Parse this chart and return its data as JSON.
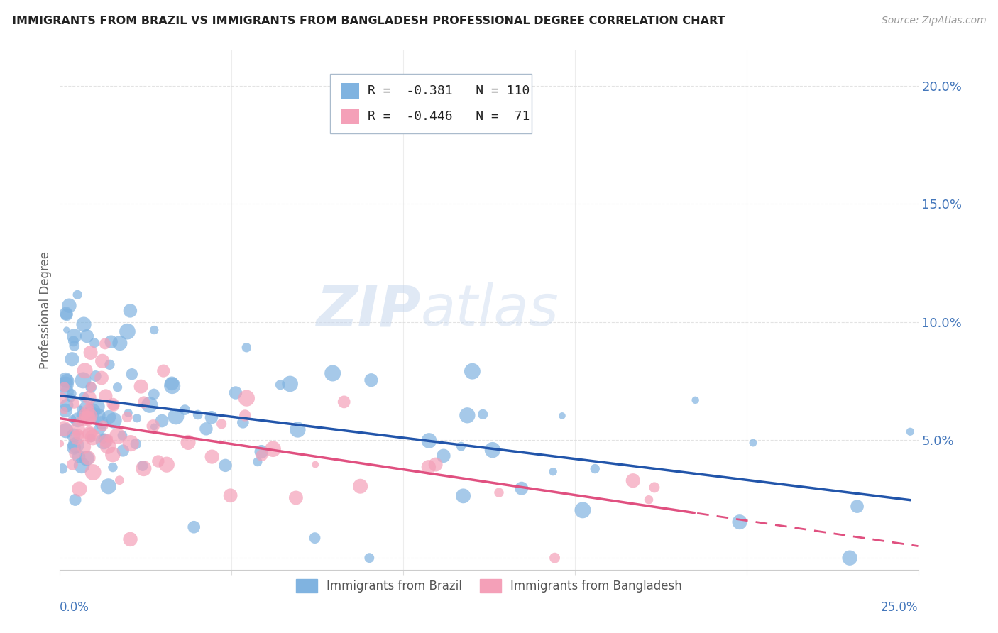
{
  "title": "IMMIGRANTS FROM BRAZIL VS IMMIGRANTS FROM BANGLADESH PROFESSIONAL DEGREE CORRELATION CHART",
  "source": "Source: ZipAtlas.com",
  "ylabel": "Professional Degree",
  "legend_brazil": "Immigrants from Brazil",
  "legend_bangladesh": "Immigrants from Bangladesh",
  "r_brazil": -0.381,
  "n_brazil": 110,
  "r_bangladesh": -0.446,
  "n_bangladesh": 71,
  "brazil_color": "#80b3e0",
  "bangladesh_color": "#f4a0b8",
  "trend_brazil_color": "#2255aa",
  "trend_bangladesh_color": "#e05080",
  "xmin": 0.0,
  "xmax": 0.25,
  "ymin": -0.005,
  "ymax": 0.215,
  "yticks": [
    0.0,
    0.05,
    0.1,
    0.15,
    0.2
  ],
  "ytick_labels": [
    "",
    "5.0%",
    "10.0%",
    "15.0%",
    "20.0%"
  ],
  "watermark_zip": "ZIP",
  "watermark_atlas": "atlas",
  "background_color": "#ffffff",
  "title_color": "#222222",
  "axis_color": "#4477bb",
  "grid_color": "#dddddd",
  "tick_color": "#4477bb"
}
